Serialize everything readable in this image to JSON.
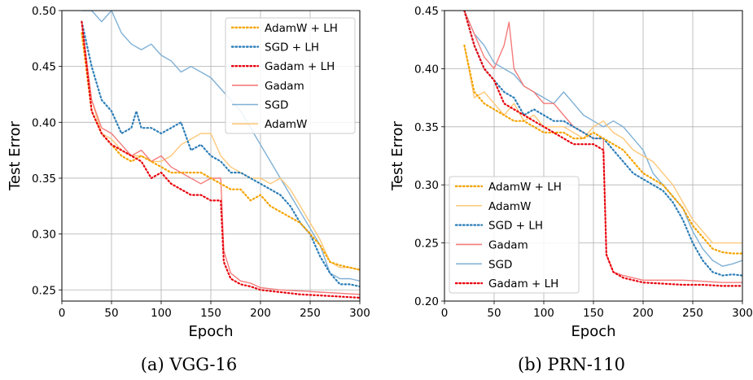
{
  "chart_data": [
    {
      "type": "line",
      "caption": "(a) VGG-16",
      "xlabel": "Epoch",
      "ylabel": "Test Error",
      "xlim": [
        0,
        300
      ],
      "ylim": [
        0.24,
        0.5
      ],
      "xticks": [
        "0",
        "50",
        "100",
        "150",
        "200",
        "250",
        "300"
      ],
      "yticks": [
        "0.25",
        "0.30",
        "0.35",
        "0.40",
        "0.45",
        "0.50"
      ],
      "grid": true,
      "legend_position": "top-right",
      "legend_order": [
        "AdamW + LH",
        "SGD + LH",
        "Gadam + LH",
        "Gadam",
        "SGD",
        "AdamW"
      ],
      "series": [
        {
          "name": "SGD",
          "color": "#7fb0d5",
          "style": "solid",
          "x": [
            20,
            30,
            40,
            50,
            60,
            70,
            80,
            90,
            100,
            110,
            120,
            130,
            140,
            150,
            160,
            170,
            180,
            190,
            200,
            210,
            220,
            230,
            240,
            250,
            260,
            270,
            280,
            290,
            300
          ],
          "y": [
            0.5,
            0.5,
            0.49,
            0.5,
            0.48,
            0.47,
            0.465,
            0.47,
            0.46,
            0.455,
            0.445,
            0.45,
            0.445,
            0.44,
            0.43,
            0.42,
            0.41,
            0.395,
            0.38,
            0.365,
            0.35,
            0.335,
            0.32,
            0.305,
            0.29,
            0.265,
            0.26,
            0.26,
            0.258
          ]
        },
        {
          "name": "AdamW",
          "color": "#fdc87a",
          "style": "solid",
          "x": [
            20,
            30,
            40,
            50,
            60,
            70,
            80,
            90,
            100,
            110,
            120,
            130,
            140,
            150,
            160,
            170,
            180,
            190,
            200,
            210,
            220,
            230,
            240,
            250,
            260,
            270,
            280,
            290,
            300
          ],
          "y": [
            0.48,
            0.42,
            0.39,
            0.385,
            0.375,
            0.37,
            0.37,
            0.365,
            0.365,
            0.37,
            0.38,
            0.385,
            0.39,
            0.39,
            0.37,
            0.36,
            0.355,
            0.35,
            0.35,
            0.345,
            0.35,
            0.34,
            0.325,
            0.31,
            0.295,
            0.275,
            0.27,
            0.27,
            0.268
          ]
        },
        {
          "name": "Gadam",
          "color": "#f47c7c",
          "style": "solid",
          "x": [
            20,
            30,
            40,
            50,
            60,
            70,
            80,
            90,
            100,
            110,
            120,
            130,
            140,
            150,
            160,
            163,
            170,
            180,
            190,
            200,
            220,
            240,
            260,
            280,
            300
          ],
          "y": [
            0.49,
            0.42,
            0.395,
            0.39,
            0.38,
            0.37,
            0.375,
            0.365,
            0.37,
            0.36,
            0.355,
            0.35,
            0.345,
            0.35,
            0.35,
            0.285,
            0.265,
            0.258,
            0.256,
            0.252,
            0.25,
            0.249,
            0.248,
            0.247,
            0.246
          ]
        },
        {
          "name": "SGD + LH",
          "color": "#2e7fb8",
          "style": "dotted",
          "x": [
            20,
            30,
            40,
            50,
            60,
            70,
            75,
            80,
            90,
            100,
            110,
            120,
            130,
            140,
            150,
            160,
            170,
            180,
            190,
            200,
            210,
            220,
            230,
            240,
            250,
            260,
            270,
            280,
            290,
            300
          ],
          "y": [
            0.49,
            0.45,
            0.42,
            0.41,
            0.39,
            0.395,
            0.41,
            0.395,
            0.395,
            0.39,
            0.395,
            0.4,
            0.375,
            0.38,
            0.37,
            0.365,
            0.355,
            0.355,
            0.35,
            0.345,
            0.34,
            0.335,
            0.325,
            0.31,
            0.3,
            0.28,
            0.265,
            0.255,
            0.255,
            0.253
          ]
        },
        {
          "name": "AdamW + LH",
          "color": "#f5a300",
          "style": "dotted",
          "x": [
            20,
            30,
            40,
            50,
            60,
            70,
            80,
            90,
            100,
            110,
            120,
            130,
            140,
            150,
            160,
            170,
            180,
            190,
            200,
            210,
            220,
            230,
            240,
            250,
            260,
            270,
            280,
            290,
            300
          ],
          "y": [
            0.48,
            0.41,
            0.39,
            0.38,
            0.37,
            0.365,
            0.37,
            0.365,
            0.36,
            0.355,
            0.355,
            0.355,
            0.355,
            0.35,
            0.345,
            0.34,
            0.34,
            0.33,
            0.335,
            0.325,
            0.32,
            0.315,
            0.31,
            0.3,
            0.29,
            0.275,
            0.272,
            0.27,
            0.268
          ]
        },
        {
          "name": "Gadam + LH",
          "color": "#e8000b",
          "style": "dotted",
          "x": [
            20,
            30,
            40,
            50,
            60,
            70,
            80,
            90,
            100,
            110,
            120,
            130,
            140,
            150,
            160,
            163,
            170,
            180,
            190,
            200,
            220,
            240,
            260,
            280,
            300
          ],
          "y": [
            0.49,
            0.41,
            0.39,
            0.38,
            0.375,
            0.37,
            0.365,
            0.35,
            0.355,
            0.345,
            0.34,
            0.335,
            0.335,
            0.33,
            0.33,
            0.275,
            0.26,
            0.255,
            0.253,
            0.25,
            0.248,
            0.246,
            0.245,
            0.244,
            0.243
          ]
        }
      ]
    },
    {
      "type": "line",
      "caption": "(b) PRN-110",
      "xlabel": "Epoch",
      "ylabel": "Test Error",
      "xlim": [
        0,
        300
      ],
      "ylim": [
        0.2,
        0.45
      ],
      "xticks": [
        "0",
        "50",
        "100",
        "150",
        "200",
        "250",
        "300"
      ],
      "yticks": [
        "0.20",
        "0.25",
        "0.30",
        "0.35",
        "0.40",
        "0.45"
      ],
      "grid": true,
      "legend_position": "lower-left",
      "legend_order": [
        "AdamW + LH",
        "AdamW",
        "SGD + LH",
        "Gadam",
        "SGD",
        "Gadam + LH"
      ],
      "series": [
        {
          "name": "SGD",
          "color": "#7fb0d5",
          "style": "solid",
          "x": [
            20,
            30,
            40,
            50,
            60,
            70,
            80,
            90,
            100,
            110,
            120,
            130,
            140,
            150,
            160,
            170,
            180,
            190,
            200,
            210,
            220,
            230,
            240,
            250,
            260,
            270,
            280,
            290,
            300
          ],
          "y": [
            0.45,
            0.43,
            0.42,
            0.405,
            0.4,
            0.395,
            0.385,
            0.38,
            0.375,
            0.37,
            0.38,
            0.37,
            0.36,
            0.355,
            0.35,
            0.355,
            0.35,
            0.34,
            0.33,
            0.31,
            0.3,
            0.29,
            0.28,
            0.26,
            0.245,
            0.235,
            0.23,
            0.232,
            0.235
          ]
        },
        {
          "name": "AdamW",
          "color": "#fdc87a",
          "style": "solid",
          "x": [
            20,
            30,
            40,
            50,
            60,
            70,
            80,
            90,
            100,
            110,
            120,
            130,
            140,
            150,
            160,
            170,
            180,
            190,
            200,
            210,
            220,
            230,
            240,
            250,
            260,
            270,
            280,
            290,
            300
          ],
          "y": [
            0.42,
            0.375,
            0.38,
            0.37,
            0.36,
            0.37,
            0.355,
            0.36,
            0.35,
            0.35,
            0.35,
            0.345,
            0.34,
            0.35,
            0.355,
            0.345,
            0.34,
            0.33,
            0.325,
            0.32,
            0.31,
            0.3,
            0.285,
            0.27,
            0.26,
            0.25,
            0.25,
            0.25,
            0.25
          ]
        },
        {
          "name": "Gadam",
          "color": "#f47c7c",
          "style": "solid",
          "x": [
            20,
            30,
            40,
            50,
            60,
            65,
            70,
            80,
            90,
            100,
            110,
            120,
            130,
            140,
            150,
            160,
            163,
            170,
            180,
            190,
            200,
            220,
            240,
            260,
            280,
            300
          ],
          "y": [
            0.45,
            0.43,
            0.41,
            0.4,
            0.42,
            0.44,
            0.4,
            0.385,
            0.38,
            0.37,
            0.37,
            0.36,
            0.35,
            0.345,
            0.34,
            0.34,
            0.24,
            0.225,
            0.222,
            0.22,
            0.218,
            0.218,
            0.218,
            0.217,
            0.216,
            0.216
          ]
        },
        {
          "name": "SGD + LH",
          "color": "#2e7fb8",
          "style": "dotted",
          "x": [
            20,
            30,
            40,
            50,
            60,
            70,
            80,
            90,
            100,
            110,
            120,
            130,
            140,
            150,
            160,
            170,
            180,
            190,
            200,
            210,
            220,
            230,
            240,
            250,
            260,
            270,
            280,
            290,
            300
          ],
          "y": [
            0.45,
            0.42,
            0.4,
            0.39,
            0.38,
            0.375,
            0.36,
            0.365,
            0.36,
            0.355,
            0.355,
            0.35,
            0.345,
            0.34,
            0.34,
            0.33,
            0.32,
            0.31,
            0.305,
            0.3,
            0.295,
            0.285,
            0.27,
            0.25,
            0.235,
            0.225,
            0.222,
            0.223,
            0.222
          ]
        },
        {
          "name": "AdamW + LH",
          "color": "#f5a300",
          "style": "dotted",
          "x": [
            20,
            30,
            40,
            50,
            60,
            70,
            80,
            90,
            100,
            110,
            120,
            130,
            140,
            150,
            160,
            170,
            180,
            190,
            200,
            210,
            220,
            230,
            240,
            250,
            260,
            270,
            280,
            290,
            300
          ],
          "y": [
            0.42,
            0.38,
            0.37,
            0.365,
            0.36,
            0.355,
            0.355,
            0.35,
            0.345,
            0.345,
            0.345,
            0.34,
            0.34,
            0.345,
            0.34,
            0.335,
            0.33,
            0.32,
            0.31,
            0.305,
            0.3,
            0.29,
            0.28,
            0.265,
            0.255,
            0.245,
            0.242,
            0.241,
            0.241
          ]
        },
        {
          "name": "Gadam + LH",
          "color": "#e8000b",
          "style": "dotted",
          "x": [
            20,
            30,
            40,
            50,
            60,
            70,
            80,
            90,
            100,
            110,
            120,
            130,
            140,
            150,
            160,
            163,
            170,
            180,
            190,
            200,
            220,
            240,
            260,
            280,
            300
          ],
          "y": [
            0.45,
            0.42,
            0.4,
            0.39,
            0.37,
            0.365,
            0.36,
            0.355,
            0.35,
            0.345,
            0.34,
            0.335,
            0.335,
            0.335,
            0.33,
            0.24,
            0.225,
            0.22,
            0.218,
            0.216,
            0.215,
            0.214,
            0.214,
            0.213,
            0.213
          ]
        }
      ]
    }
  ]
}
